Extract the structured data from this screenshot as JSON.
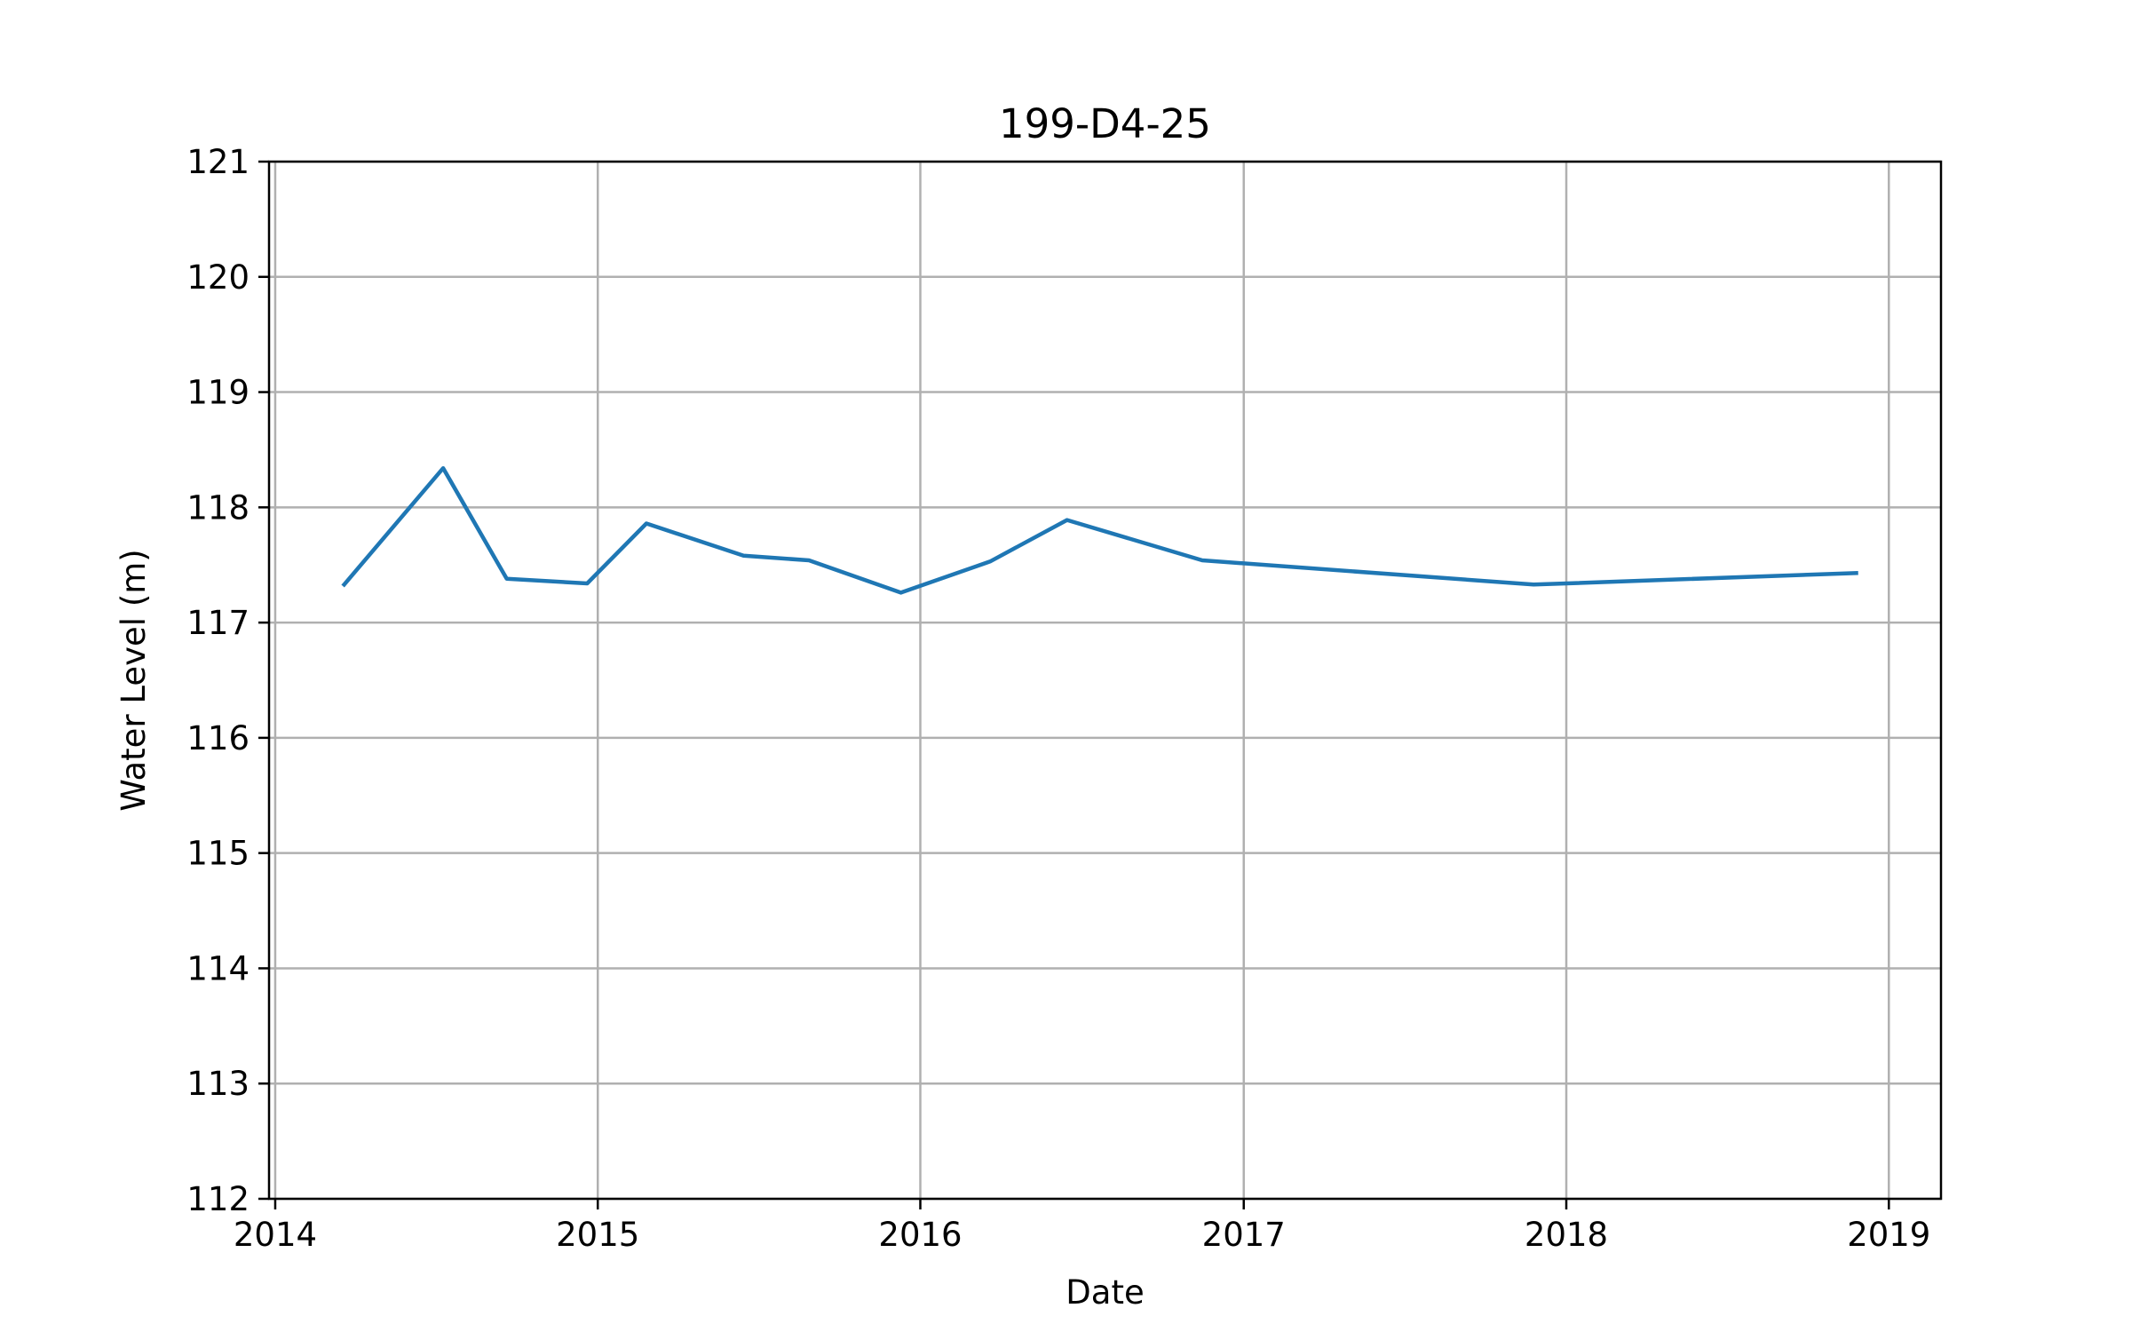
{
  "chart_data": {
    "type": "line",
    "title": "199-D4-25",
    "xlabel": "Date",
    "ylabel": "Water Level (m)",
    "xlim": [
      "2013-12-25",
      "2019-03-01"
    ],
    "ylim": [
      112,
      121
    ],
    "grid": true,
    "x_ticks": [
      "2014",
      "2015",
      "2016",
      "2017",
      "2018",
      "2019"
    ],
    "y_ticks": [
      "112",
      "113",
      "114",
      "115",
      "116",
      "117",
      "118",
      "119",
      "120",
      "121"
    ],
    "series_color": "#1f77b4",
    "series": [
      {
        "x": [
          "2014-03-20",
          "2014-07-10",
          "2014-09-20",
          "2014-12-20",
          "2015-02-25",
          "2015-06-15",
          "2015-08-28",
          "2015-12-10",
          "2016-03-20",
          "2016-06-15",
          "2016-11-15",
          "2017-11-25",
          "2018-11-25"
        ],
        "y": [
          117.33,
          118.34,
          117.38,
          117.34,
          117.86,
          117.58,
          117.54,
          117.26,
          117.53,
          117.89,
          117.54,
          117.33,
          117.43
        ]
      }
    ]
  }
}
